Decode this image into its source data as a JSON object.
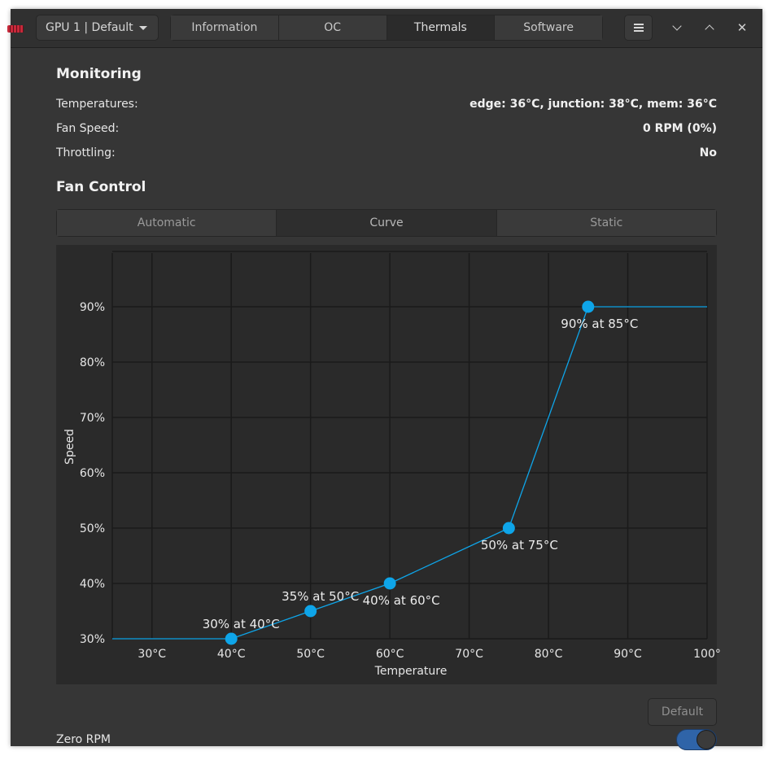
{
  "header": {
    "gpu_selector": "GPU 1 | Default",
    "tabs": [
      {
        "label": "Information",
        "active": false
      },
      {
        "label": "OC",
        "active": false
      },
      {
        "label": "Thermals",
        "active": true
      },
      {
        "label": "Software",
        "active": false
      }
    ],
    "menu_icon": "hamburger-icon",
    "window_buttons": [
      "minimize-icon",
      "maximize-icon",
      "close-icon"
    ],
    "close_glyph": "✕"
  },
  "monitoring": {
    "title": "Monitoring",
    "rows": [
      {
        "label": "Temperatures:",
        "value": "edge: 36°C, junction: 38°C, mem: 36°C"
      },
      {
        "label": "Fan Speed:",
        "value": "0 RPM (0%)"
      },
      {
        "label": "Throttling:",
        "value": "No"
      }
    ]
  },
  "fan_control": {
    "title": "Fan Control",
    "modes": [
      {
        "label": "Automatic",
        "active": false
      },
      {
        "label": "Curve",
        "active": true
      },
      {
        "label": "Static",
        "active": false
      }
    ],
    "default_button": "Default",
    "zero_rpm_label": "Zero RPM",
    "zero_rpm_enabled": true
  },
  "colors": {
    "accent": "#0ea5e9",
    "toggle_on": "#2f64a8"
  },
  "chart_data": {
    "type": "line",
    "xlabel": "Temperature",
    "ylabel": "Speed",
    "xlim": [
      25,
      100
    ],
    "ylim": [
      30,
      100
    ],
    "x_ticks": [
      30,
      40,
      50,
      60,
      70,
      80,
      90,
      100
    ],
    "x_tick_labels": [
      "30°C",
      "40°C",
      "50°C",
      "60°C",
      "70°C",
      "80°C",
      "90°C",
      "100°"
    ],
    "y_ticks": [
      30,
      40,
      50,
      60,
      70,
      80,
      90
    ],
    "y_tick_labels": [
      "30%",
      "40%",
      "50%",
      "60%",
      "70%",
      "80%",
      "90%"
    ],
    "grid": true,
    "points": [
      {
        "x": 40,
        "y": 30,
        "label": "30% at 40°C"
      },
      {
        "x": 50,
        "y": 35,
        "label": "35% at 50°C"
      },
      {
        "x": 60,
        "y": 40,
        "label": "40% at 60°C"
      },
      {
        "x": 75,
        "y": 50,
        "label": "50% at 75°C"
      },
      {
        "x": 85,
        "y": 90,
        "label": "90% at 85°C"
      }
    ]
  }
}
